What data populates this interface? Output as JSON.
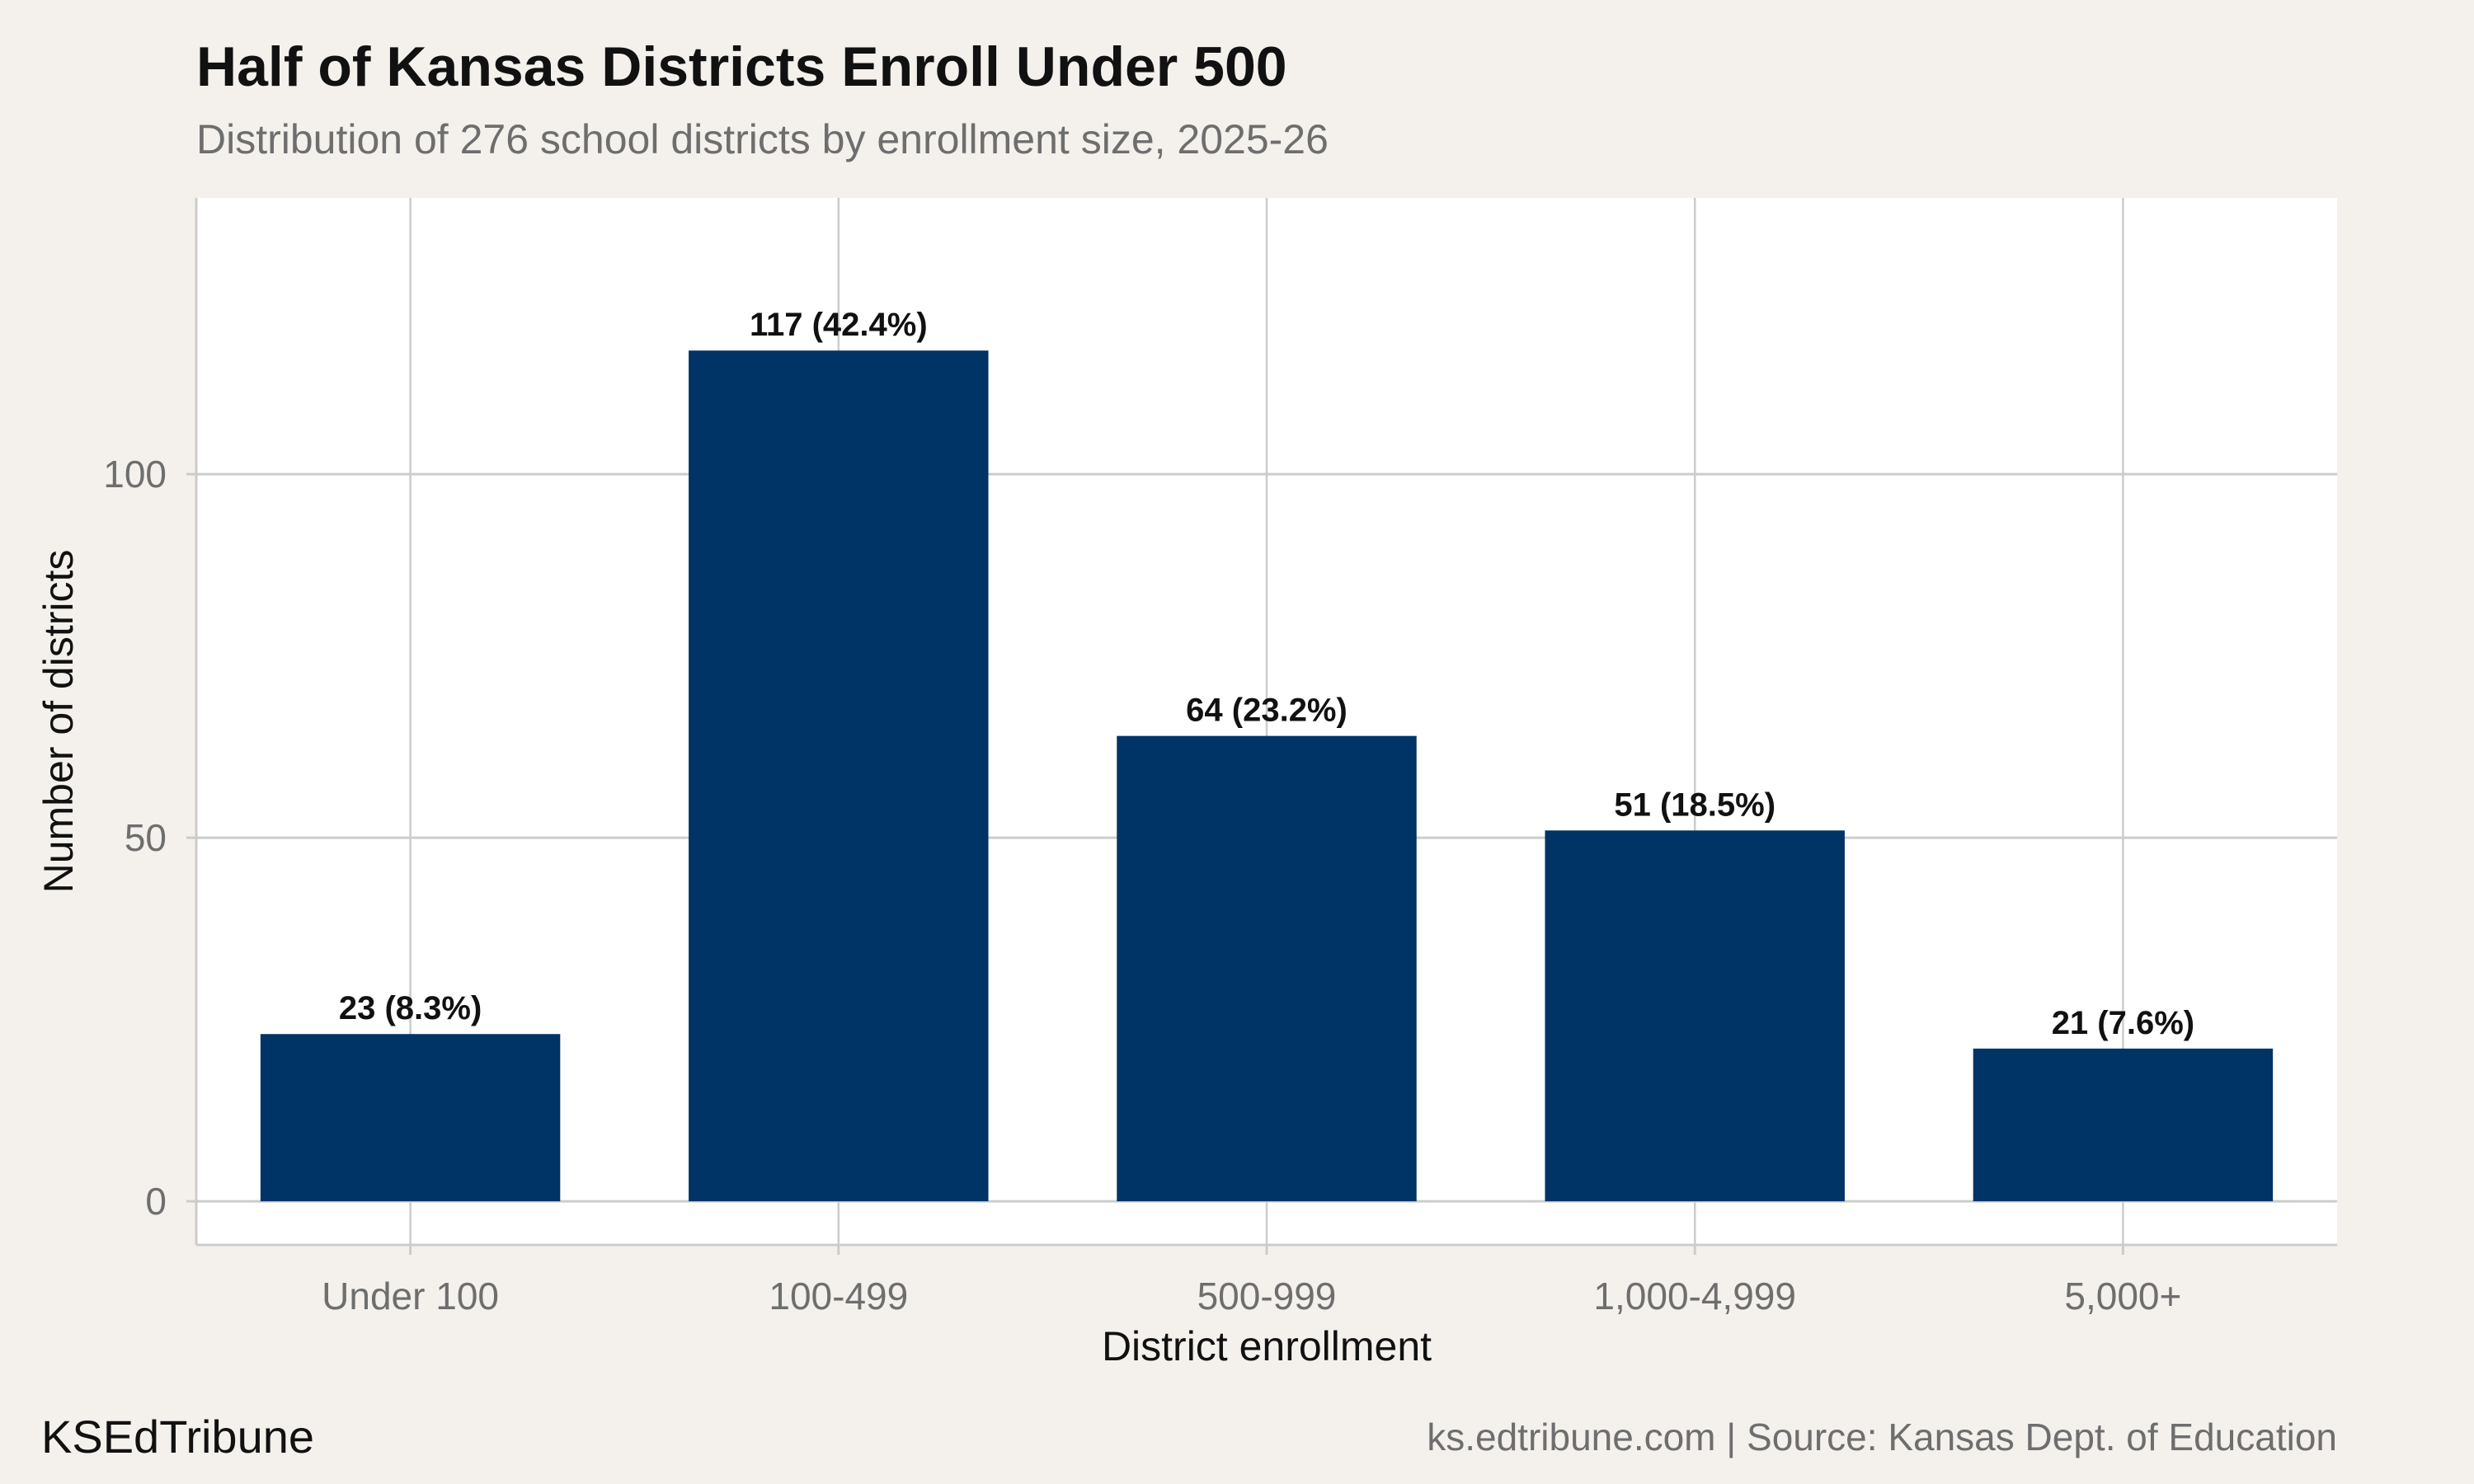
{
  "header": {
    "title": "Half of Kansas Districts Enroll Under 500",
    "subtitle": "Distribution of 276 school districts by enrollment size, 2025-26"
  },
  "footer": {
    "brand": "KSEdTribune",
    "source": "ks.edtribune.com | Source: Kansas Dept. of Education"
  },
  "colors": {
    "bar": "#003366",
    "panel": "#ffffff",
    "background": "#f4f1ec",
    "grid": "#cccccc",
    "tick_text": "#6e6e6e",
    "label_text": "#111111"
  },
  "chart_data": {
    "type": "bar",
    "title": "Half of Kansas Districts Enroll Under 500",
    "subtitle": "Distribution of 276 school districts by enrollment size, 2025-26",
    "xlabel": "District enrollment",
    "ylabel": "Number of districts",
    "categories": [
      "Under 100",
      "100-499",
      "500-999",
      "1,000-4,999",
      "5,000+"
    ],
    "values": [
      23,
      117,
      64,
      51,
      21
    ],
    "data_labels": [
      "23 (8.3%)",
      "117 (42.4%)",
      "64 (23.2%)",
      "51 (18.5%)",
      "21 (7.6%)"
    ],
    "yticks": [
      0,
      50,
      100
    ],
    "ylim": [
      -6,
      138
    ],
    "grid": true,
    "legend": "none"
  }
}
